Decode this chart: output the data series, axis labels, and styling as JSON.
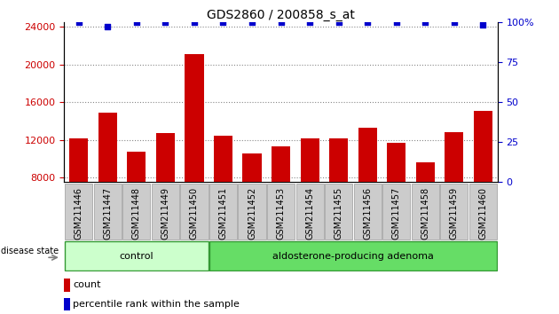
{
  "title": "GDS2860 / 200858_s_at",
  "samples": [
    "GSM211446",
    "GSM211447",
    "GSM211448",
    "GSM211449",
    "GSM211450",
    "GSM211451",
    "GSM211452",
    "GSM211453",
    "GSM211454",
    "GSM211455",
    "GSM211456",
    "GSM211457",
    "GSM211458",
    "GSM211459",
    "GSM211460"
  ],
  "counts": [
    12100,
    14900,
    10700,
    12700,
    21100,
    12400,
    10500,
    11300,
    12100,
    12100,
    13300,
    11700,
    9600,
    12800,
    15100
  ],
  "percentiles": [
    100,
    97,
    100,
    100,
    100,
    100,
    100,
    100,
    100,
    100,
    100,
    100,
    100,
    100,
    98
  ],
  "ylim_left": [
    7500,
    24500
  ],
  "ylim_right": [
    0,
    100
  ],
  "yticks_left": [
    8000,
    12000,
    16000,
    20000,
    24000
  ],
  "yticks_right": [
    0,
    25,
    50,
    75,
    100
  ],
  "bar_color": "#cc0000",
  "scatter_color": "#0000cc",
  "control_count": 5,
  "group_labels": [
    "control",
    "aldosterone-producing adenoma"
  ],
  "group_colors": [
    "#ccffcc",
    "#66dd66"
  ],
  "disease_state_label": "disease state",
  "legend_count_label": "count",
  "legend_percentile_label": "percentile rank within the sample",
  "grid_color": "#888888",
  "tick_label_bg": "#cccccc",
  "fig_width": 6.3,
  "fig_height": 3.54,
  "dpi": 100
}
